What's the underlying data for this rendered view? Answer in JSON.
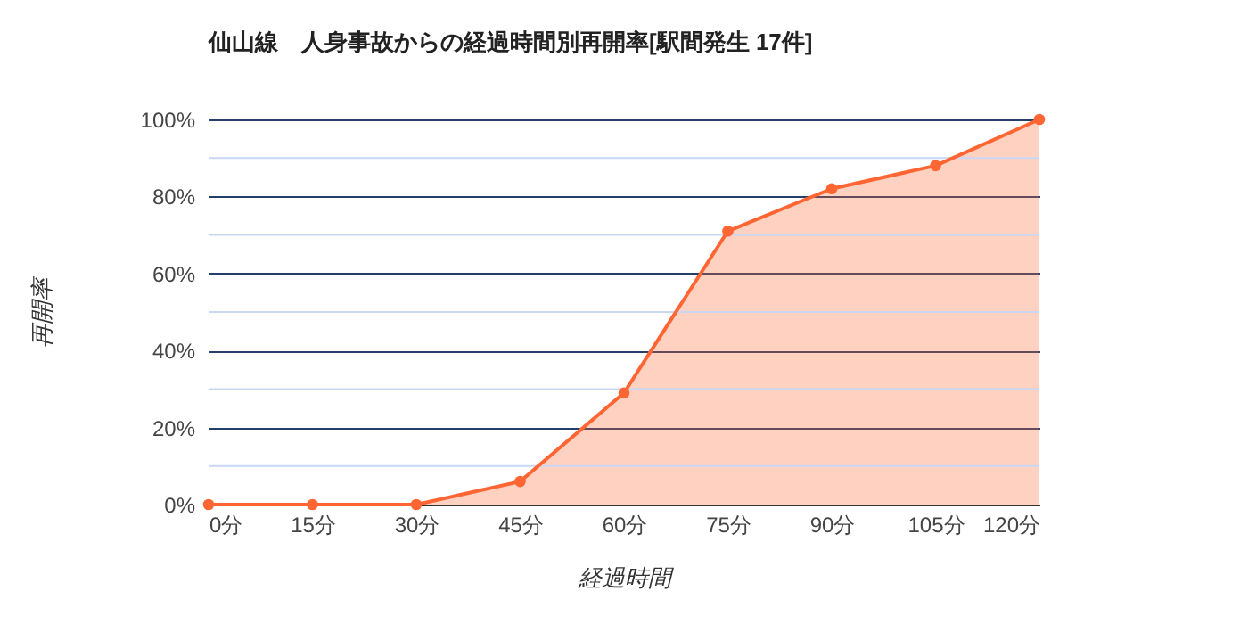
{
  "chart_data": {
    "type": "area",
    "title": "仙山線　人身事故からの経過時間別再開率[駅間発生 17件]",
    "xlabel": "経過時間",
    "ylabel": "再開率",
    "x": [
      0,
      15,
      30,
      45,
      60,
      75,
      90,
      105,
      120
    ],
    "series": [
      {
        "color": "#ff6633",
        "values": [
          0,
          0,
          0,
          6,
          29,
          71,
          82,
          88,
          100
        ]
      }
    ],
    "xlim": [
      0,
      120
    ],
    "xticks": [
      {
        "value": 0,
        "label": "0分"
      },
      {
        "value": 15,
        "label": "15分"
      },
      {
        "value": 30,
        "label": "30分"
      },
      {
        "value": 45,
        "label": "45分"
      },
      {
        "value": 60,
        "label": "60分"
      },
      {
        "value": 75,
        "label": "75分"
      },
      {
        "value": 90,
        "label": "90分"
      },
      {
        "value": 105,
        "label": "105分"
      },
      {
        "value": 120,
        "label": "120分"
      }
    ],
    "ylim": [
      0,
      100
    ],
    "yticks": [
      {
        "value": 0,
        "label": "0%"
      },
      {
        "value": 10,
        "label": null
      },
      {
        "value": 20,
        "label": "20%"
      },
      {
        "value": 30,
        "label": null
      },
      {
        "value": 40,
        "label": "40%"
      },
      {
        "value": 50,
        "label": null
      },
      {
        "value": 60,
        "label": "60%"
      },
      {
        "value": 70,
        "label": null
      },
      {
        "value": 80,
        "label": "80%"
      },
      {
        "value": 90,
        "label": null
      },
      {
        "value": 100,
        "label": "100%"
      }
    ],
    "grid": "y",
    "marker": "circle",
    "line_style": "solid"
  }
}
